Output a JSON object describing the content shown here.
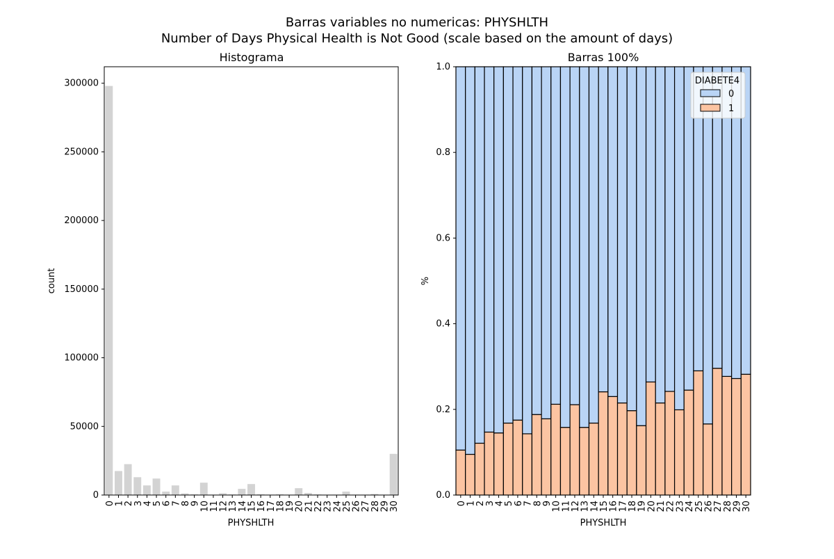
{
  "figure": {
    "suptitle_line1": "Barras variables no numericas: PHYSHLTH",
    "suptitle_line2": "Number of Days Physical Health is Not Good (scale based on the amount of days)"
  },
  "chart_data": [
    {
      "type": "bar",
      "title": "Histograma",
      "xlabel": "PHYSHLTH",
      "ylabel": "count",
      "ylim": [
        0,
        312000
      ],
      "yticks": [
        0,
        50000,
        100000,
        150000,
        200000,
        250000,
        300000
      ],
      "bar_color": "#d3d3d3",
      "grid": false,
      "categories": [
        "0",
        "1",
        "2",
        "3",
        "4",
        "5",
        "6",
        "7",
        "8",
        "9",
        "10",
        "11",
        "12",
        "13",
        "14",
        "15",
        "16",
        "17",
        "18",
        "19",
        "20",
        "21",
        "22",
        "23",
        "24",
        "25",
        "26",
        "27",
        "28",
        "29",
        "30"
      ],
      "values": [
        298000,
        17500,
        22500,
        13000,
        7000,
        12000,
        2500,
        7000,
        1200,
        500,
        9000,
        300,
        1300,
        400,
        4500,
        8000,
        500,
        300,
        500,
        100,
        5000,
        1500,
        400,
        200,
        300,
        2500,
        300,
        300,
        800,
        300,
        30000
      ]
    },
    {
      "type": "bar",
      "stacked_percent": true,
      "title": "Barras 100%",
      "xlabel": "PHYSHLTH",
      "ylabel": "%",
      "ylim": [
        0,
        1
      ],
      "yticks": [
        "0.0",
        "0.2",
        "0.4",
        "0.6",
        "0.8",
        "1.0"
      ],
      "grid": false,
      "legend": {
        "title": "DIABETE4",
        "placement": "top-right"
      },
      "categories": [
        "0",
        "1",
        "2",
        "3",
        "4",
        "5",
        "6",
        "7",
        "8",
        "9",
        "10",
        "11",
        "12",
        "13",
        "14",
        "15",
        "16",
        "17",
        "18",
        "19",
        "20",
        "21",
        "22",
        "23",
        "24",
        "25",
        "26",
        "27",
        "28",
        "29",
        "30"
      ],
      "series": [
        {
          "name": "0",
          "color": "#b9d4f5",
          "values": [
            0.895,
            0.905,
            0.879,
            0.853,
            0.855,
            0.832,
            0.825,
            0.857,
            0.812,
            0.822,
            0.788,
            0.842,
            0.789,
            0.842,
            0.832,
            0.759,
            0.77,
            0.785,
            0.803,
            0.838,
            0.736,
            0.785,
            0.758,
            0.801,
            0.755,
            0.71,
            0.834,
            0.704,
            0.723,
            0.728,
            0.718
          ]
        },
        {
          "name": "1",
          "color": "#fcc4a2",
          "values": [
            0.105,
            0.095,
            0.121,
            0.147,
            0.145,
            0.168,
            0.175,
            0.143,
            0.188,
            0.178,
            0.212,
            0.158,
            0.211,
            0.158,
            0.168,
            0.241,
            0.23,
            0.215,
            0.197,
            0.162,
            0.264,
            0.215,
            0.242,
            0.199,
            0.245,
            0.29,
            0.166,
            0.296,
            0.277,
            0.272,
            0.282
          ]
        }
      ]
    }
  ]
}
